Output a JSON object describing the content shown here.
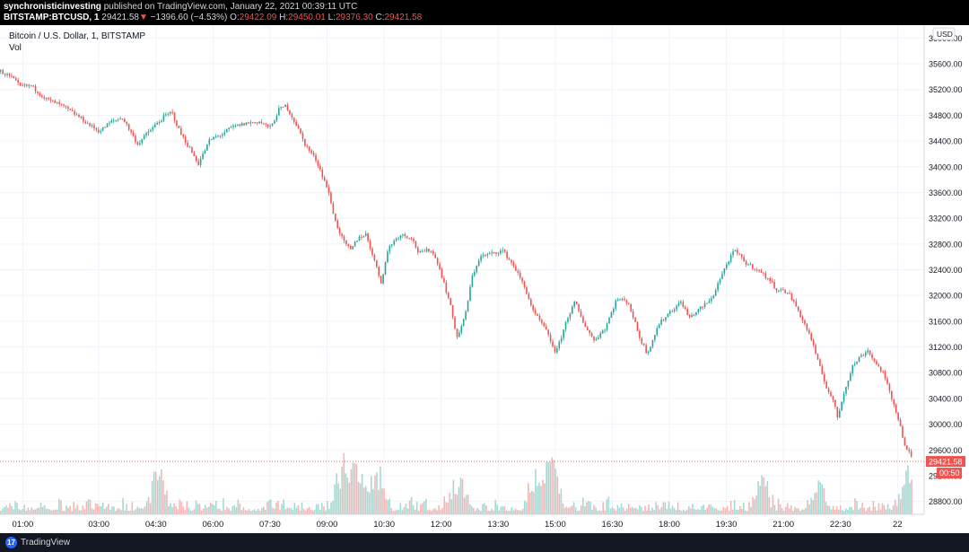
{
  "header": {
    "publisher": "synchronisticinvesting",
    "published_text": "published on TradingView.com, January 22, 2021 00:39:11 UTC",
    "symbol": "BITSTAMP:BTCUSD, 1",
    "last": "29421.58",
    "change_arrow": "▼",
    "change": "−1396.60 (−4.53%)",
    "o_label": "O:",
    "o_value": "29422.09",
    "h_label": "H:",
    "h_value": "29450.01",
    "l_label": "L:",
    "l_value": "29376.30",
    "c_label": "C:",
    "c_value": "29421.58"
  },
  "legend": {
    "title": "Bitcoin / U.S. Dollar, 1, BITSTAMP",
    "vol_label": "Vol"
  },
  "footer": {
    "brand": "TradingView",
    "logo_glyph": "17"
  },
  "colors": {
    "up": "#26a69a",
    "down": "#ef5350",
    "vol_up": "#a5d9d3",
    "vol_down": "#f7b5b3",
    "grid": "#f0f3fa",
    "price_label_bg": "#ef5350"
  },
  "chart_data": {
    "type": "candlestick",
    "title": "Bitcoin / U.S. Dollar, 1, BITSTAMP",
    "currency_label": "USD",
    "ylim": [
      28600,
      36200
    ],
    "y_ticks": [
      28800,
      29200,
      29600,
      30000,
      30400,
      30800,
      31200,
      31600,
      32000,
      32400,
      32800,
      33200,
      33600,
      34000,
      34400,
      34800,
      35200,
      35600,
      36000
    ],
    "y_tick_labels": [
      "28800.00",
      "29200.00",
      "29600.00",
      "30000.00",
      "30400.00",
      "30800.00",
      "31200.00",
      "31600.00",
      "32000.00",
      "32400.00",
      "32800.00",
      "33200.00",
      "33600.00",
      "34000.00",
      "34400.00",
      "34800.00",
      "35200.00",
      "35600.00",
      "36000.00"
    ],
    "x_ticks": [
      "01:00",
      "03:00",
      "04:30",
      "06:00",
      "07:30",
      "09:00",
      "10:30",
      "12:00",
      "13:30",
      "15:00",
      "16:30",
      "18:00",
      "19:30",
      "21:00",
      "22:30",
      "22"
    ],
    "x_tick_positions": [
      0.6,
      2.6,
      4.1,
      5.6,
      7.1,
      8.6,
      10.1,
      11.6,
      13.1,
      14.6,
      16.1,
      17.6,
      19.1,
      20.6,
      22.1,
      23.6
    ],
    "x_range_hours": [
      0,
      24.3
    ],
    "last_price": 29421.58,
    "last_price_label": "29421.58",
    "countdown_label": "00:50",
    "path_keypoints": [
      [
        0.0,
        35480
      ],
      [
        0.3,
        35380
      ],
      [
        0.5,
        35250
      ],
      [
        0.8,
        35260
      ],
      [
        1.0,
        35150
      ],
      [
        1.2,
        35050
      ],
      [
        1.6,
        34950
      ],
      [
        2.0,
        34800
      ],
      [
        2.4,
        34620
      ],
      [
        2.6,
        34550
      ],
      [
        2.9,
        34700
      ],
      [
        3.2,
        34760
      ],
      [
        3.4,
        34560
      ],
      [
        3.6,
        34350
      ],
      [
        3.9,
        34550
      ],
      [
        4.3,
        34780
      ],
      [
        4.5,
        34850
      ],
      [
        4.7,
        34550
      ],
      [
        5.0,
        34250
      ],
      [
        5.2,
        34050
      ],
      [
        5.5,
        34420
      ],
      [
        5.8,
        34500
      ],
      [
        6.1,
        34620
      ],
      [
        6.5,
        34680
      ],
      [
        6.8,
        34700
      ],
      [
        7.1,
        34600
      ],
      [
        7.3,
        34880
      ],
      [
        7.5,
        34950
      ],
      [
        7.8,
        34620
      ],
      [
        8.0,
        34350
      ],
      [
        8.3,
        34100
      ],
      [
        8.6,
        33650
      ],
      [
        8.8,
        33150
      ],
      [
        9.0,
        32850
      ],
      [
        9.2,
        32700
      ],
      [
        9.4,
        32900
      ],
      [
        9.6,
        32950
      ],
      [
        9.8,
        32600
      ],
      [
        10.0,
        32200
      ],
      [
        10.2,
        32750
      ],
      [
        10.5,
        32950
      ],
      [
        10.8,
        32900
      ],
      [
        11.0,
        32650
      ],
      [
        11.3,
        32720
      ],
      [
        11.5,
        32500
      ],
      [
        11.8,
        31900
      ],
      [
        12.0,
        31350
      ],
      [
        12.2,
        31650
      ],
      [
        12.4,
        32300
      ],
      [
        12.6,
        32600
      ],
      [
        12.9,
        32650
      ],
      [
        13.2,
        32700
      ],
      [
        13.5,
        32450
      ],
      [
        13.8,
        32100
      ],
      [
        14.0,
        31750
      ],
      [
        14.3,
        31500
      ],
      [
        14.6,
        31100
      ],
      [
        14.9,
        31650
      ],
      [
        15.1,
        31900
      ],
      [
        15.3,
        31600
      ],
      [
        15.6,
        31300
      ],
      [
        15.9,
        31500
      ],
      [
        16.2,
        31950
      ],
      [
        16.5,
        31900
      ],
      [
        16.8,
        31350
      ],
      [
        17.0,
        31100
      ],
      [
        17.3,
        31550
      ],
      [
        17.6,
        31750
      ],
      [
        17.9,
        31900
      ],
      [
        18.1,
        31650
      ],
      [
        18.4,
        31800
      ],
      [
        18.7,
        31950
      ],
      [
        18.9,
        32250
      ],
      [
        19.1,
        32500
      ],
      [
        19.3,
        32700
      ],
      [
        19.6,
        32500
      ],
      [
        19.9,
        32400
      ],
      [
        20.2,
        32250
      ],
      [
        20.4,
        32100
      ],
      [
        20.7,
        32050
      ],
      [
        20.9,
        31850
      ],
      [
        21.1,
        31600
      ],
      [
        21.3,
        31350
      ],
      [
        21.5,
        30950
      ],
      [
        21.7,
        30600
      ],
      [
        21.9,
        30350
      ],
      [
        22.0,
        30100
      ],
      [
        22.2,
        30550
      ],
      [
        22.4,
        30900
      ],
      [
        22.6,
        31050
      ],
      [
        22.8,
        31150
      ],
      [
        23.0,
        30950
      ],
      [
        23.2,
        30800
      ],
      [
        23.4,
        30450
      ],
      [
        23.6,
        30100
      ],
      [
        23.8,
        29600
      ],
      [
        23.9,
        29550
      ],
      [
        24.0,
        29420
      ]
    ],
    "volume_spikes": [
      [
        4.1,
        0.55
      ],
      [
        9.0,
        0.85
      ],
      [
        9.4,
        0.7
      ],
      [
        9.9,
        0.62
      ],
      [
        12.0,
        0.55
      ],
      [
        14.1,
        0.58
      ],
      [
        14.5,
        0.75
      ],
      [
        20.0,
        0.45
      ],
      [
        21.5,
        0.38
      ],
      [
        23.9,
        0.7
      ]
    ]
  }
}
